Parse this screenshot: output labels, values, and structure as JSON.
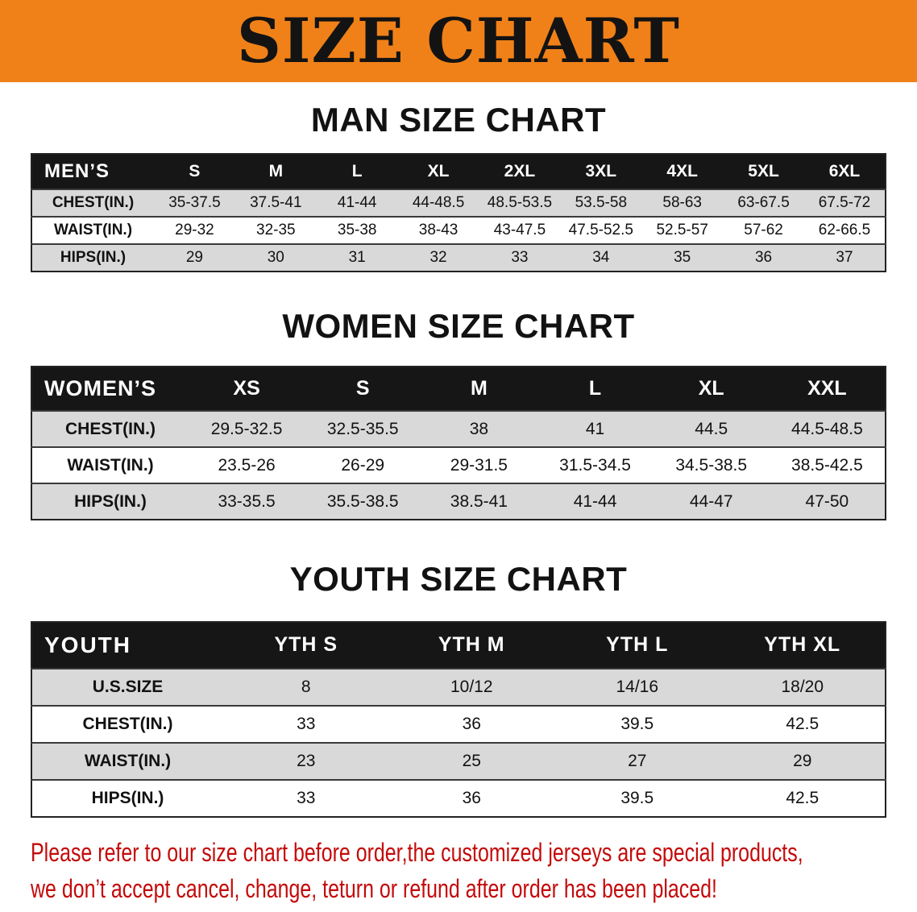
{
  "banner": {
    "title": "SIZE CHART"
  },
  "colors": {
    "banner_orange": "#F08119",
    "header_black": "#161616",
    "row_gray": "#D9D9D9",
    "row_white": "#FFFFFF",
    "disclaimer_red": "#C40A0A",
    "text_black": "#121212"
  },
  "sections": [
    {
      "id": "men",
      "heading": "MAN SIZE CHART",
      "table": {
        "header": [
          "MEN’S",
          "S",
          "M",
          "L",
          "XL",
          "2XL",
          "3XL",
          "4XL",
          "5XL",
          "6XL"
        ],
        "rows": [
          [
            "CHEST(IN.)",
            "35-37.5",
            "37.5-41",
            "41-44",
            "44-48.5",
            "48.5-53.5",
            "53.5-58",
            "58-63",
            "63-67.5",
            "67.5-72"
          ],
          [
            "WAIST(IN.)",
            "29-32",
            "32-35",
            "35-38",
            "38-43",
            "43-47.5",
            "47.5-52.5",
            "52.5-57",
            "57-62",
            "62-66.5"
          ],
          [
            "HIPS(IN.)",
            "29",
            "30",
            "31",
            "32",
            "33",
            "34",
            "35",
            "36",
            "37"
          ]
        ]
      }
    },
    {
      "id": "women",
      "heading": "WOMEN SIZE CHART",
      "table": {
        "header": [
          "WOMEN’S",
          "XS",
          "S",
          "M",
          "L",
          "XL",
          "XXL"
        ],
        "rows": [
          [
            "CHEST(IN.)",
            "29.5-32.5",
            "32.5-35.5",
            "38",
            "41",
            "44.5",
            "44.5-48.5"
          ],
          [
            "WAIST(IN.)",
            "23.5-26",
            "26-29",
            "29-31.5",
            "31.5-34.5",
            "34.5-38.5",
            "38.5-42.5"
          ],
          [
            "HIPS(IN.)",
            "33-35.5",
            "35.5-38.5",
            "38.5-41",
            "41-44",
            "44-47",
            "47-50"
          ]
        ]
      }
    },
    {
      "id": "youth",
      "heading": "YOUTH SIZE CHART",
      "table": {
        "header": [
          "YOUTH",
          "YTH S",
          "YTH M",
          "YTH L",
          "YTH XL"
        ],
        "rows": [
          [
            "U.S.SIZE",
            "8",
            "10/12",
            "14/16",
            "18/20"
          ],
          [
            "CHEST(IN.)",
            "33",
            "36",
            "39.5",
            "42.5"
          ],
          [
            "WAIST(IN.)",
            "23",
            "25",
            "27",
            "29"
          ],
          [
            "HIPS(IN.)",
            "33",
            "36",
            "39.5",
            "42.5"
          ]
        ]
      }
    }
  ],
  "disclaimer": {
    "lines": [
      "Please refer to our size chart before order,the customized jerseys are special products,",
      "we don’t accept cancel, change, teturn or refund after order has been placed!"
    ]
  }
}
